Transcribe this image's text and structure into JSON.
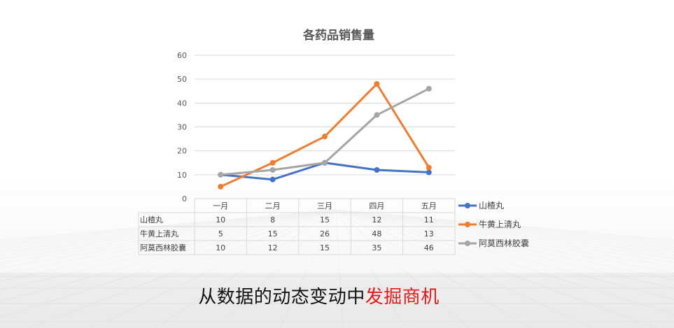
{
  "chart_data": {
    "type": "line",
    "title": "各药品销售量",
    "categories": [
      "一月",
      "二月",
      "三月",
      "四月",
      "五月"
    ],
    "y_ticks": [
      "0",
      "10",
      "20",
      "30",
      "40",
      "50",
      "60"
    ],
    "ylim": [
      0,
      60
    ],
    "grid": true,
    "legend_position": "right",
    "data_table": true,
    "series": [
      {
        "name": "山楂丸",
        "values": [
          10,
          8,
          15,
          12,
          11
        ],
        "color": "#4472c4"
      },
      {
        "name": "牛黄上清丸",
        "values": [
          5,
          15,
          26,
          48,
          13
        ],
        "color": "#ed7d31"
      },
      {
        "name": "阿莫西林胶囊",
        "values": [
          10,
          12,
          15,
          35,
          46
        ],
        "color": "#a5a5a5"
      }
    ]
  },
  "caption": {
    "normal": "从数据的动态变动中",
    "highlight": "发掘商机",
    "highlight_color": "#e21a1a"
  }
}
